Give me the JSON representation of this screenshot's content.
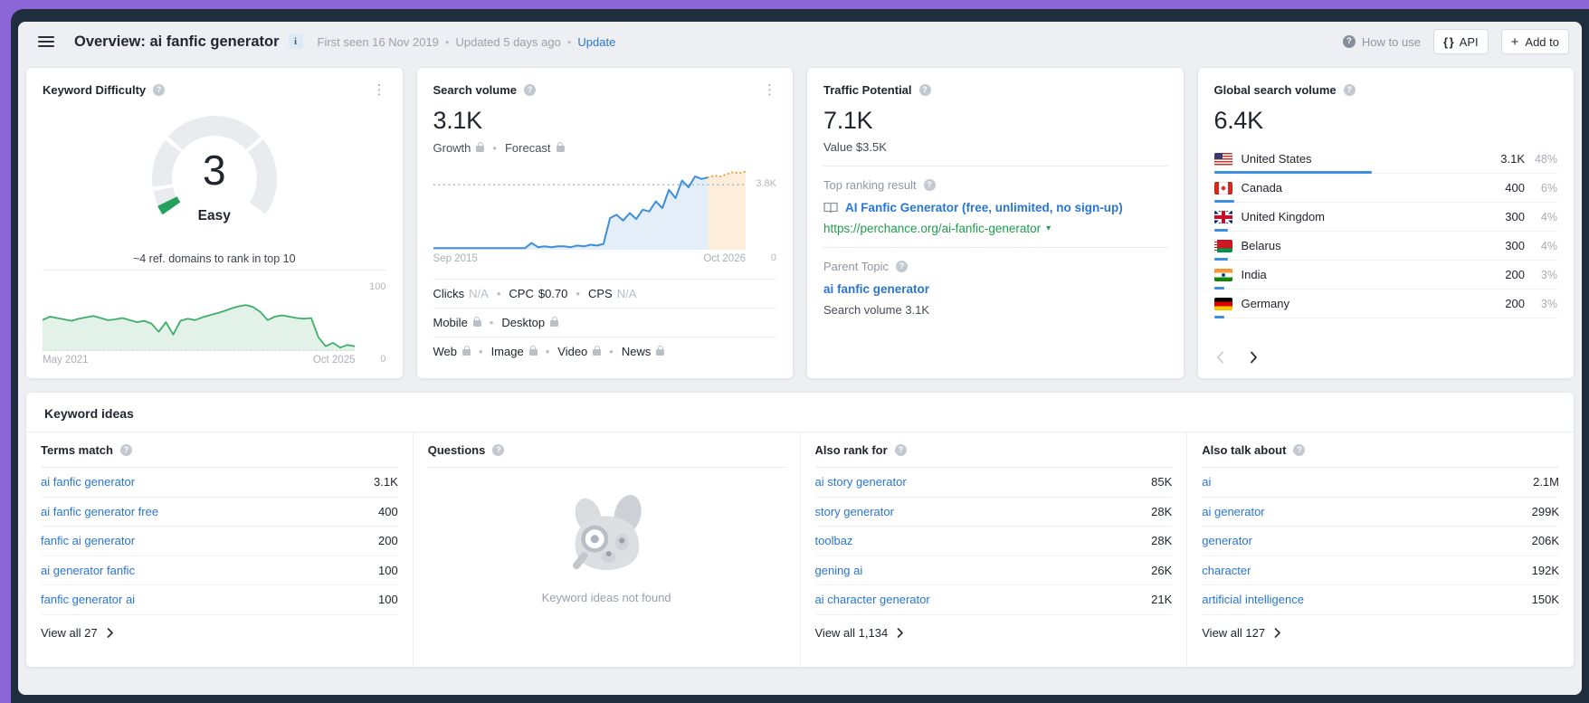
{
  "glyphs": {
    "dot": "•",
    "help": "?",
    "kebab": "⋮",
    "caret_down": "▾",
    "plus": "+",
    "braces": "{ }",
    "info": "i"
  },
  "header": {
    "title": "Overview: ai fanfic generator",
    "first_seen": "First seen 16 Nov 2019",
    "updated": "Updated 5 days ago",
    "update_link": "Update",
    "how_to_use": "How to use",
    "api_button": "API",
    "add_to_button": "Add to"
  },
  "kd_card": {
    "title": "Keyword Difficulty",
    "value": "3",
    "level": "Easy",
    "caption": "~4 ref. domains to rank in top 10",
    "gauge": {
      "value": 3,
      "max": 100,
      "boundaries": [
        10,
        30,
        70
      ]
    },
    "trend": {
      "y_max": "100",
      "y_min": "0",
      "x_start": "May 2021",
      "x_end": "Oct 2025",
      "points": [
        45,
        50,
        48,
        46,
        44,
        47,
        49,
        51,
        48,
        45,
        46,
        48,
        45,
        42,
        44,
        40,
        28,
        42,
        24,
        44,
        47,
        45,
        49,
        52,
        55,
        58,
        62,
        65,
        67,
        64,
        57,
        45,
        50,
        52,
        50,
        48,
        47,
        48,
        20,
        7,
        12,
        5,
        9,
        7
      ]
    }
  },
  "sv_card": {
    "title": "Search volume",
    "value": "3.1K",
    "growth_label": "Growth",
    "forecast_label": "Forecast",
    "chart": {
      "ref_label": "3.8K",
      "ref_value": 78,
      "x_start": "Sep 2015",
      "x_end": "Oct 2026",
      "y_min": "0",
      "history_points": [
        2,
        2,
        2,
        2,
        2,
        2,
        2,
        2,
        2,
        2,
        2,
        2,
        2,
        2,
        2,
        8,
        3,
        4,
        3,
        4,
        4,
        3,
        5,
        4,
        6,
        5,
        7,
        38,
        42,
        35,
        44,
        37,
        48,
        46,
        58,
        50,
        72,
        62,
        83,
        75,
        88,
        85,
        87
      ],
      "forecast_points": [
        87,
        89,
        88,
        91,
        93,
        92,
        94
      ],
      "history_x_end": 88
    },
    "metrics": {
      "clicks_label": "Clicks",
      "clicks_value": "N/A",
      "cpc_label": "CPC",
      "cpc_value": "$0.70",
      "cps_label": "CPS",
      "cps_value": "N/A",
      "mobile_label": "Mobile",
      "desktop_label": "Desktop",
      "web_label": "Web",
      "image_label": "Image",
      "video_label": "Video",
      "news_label": "News"
    }
  },
  "tp_card": {
    "title": "Traffic Potential",
    "value": "7.1K",
    "value_sub": "Value $3.5K",
    "top_ranking_label": "Top ranking result",
    "top_result_title": "AI Fanfic Generator (free, unlimited, no sign-up)",
    "top_result_url": "https://perchance.org/ai-fanfic-generator",
    "parent_topic_label": "Parent Topic",
    "parent_topic": "ai fanfic generator",
    "parent_topic_volume": "Search volume 3.1K"
  },
  "gsv_card": {
    "title": "Global search volume",
    "value": "6.4K",
    "countries": [
      {
        "code": "us",
        "name": "United States",
        "volume": "3.1K",
        "share": "48%",
        "bar": 46
      },
      {
        "code": "ca",
        "name": "Canada",
        "volume": "400",
        "share": "6%",
        "bar": 6
      },
      {
        "code": "gb",
        "name": "United Kingdom",
        "volume": "300",
        "share": "4%",
        "bar": 4
      },
      {
        "code": "by",
        "name": "Belarus",
        "volume": "300",
        "share": "4%",
        "bar": 4
      },
      {
        "code": "in",
        "name": "India",
        "volume": "200",
        "share": "3%",
        "bar": 3
      },
      {
        "code": "de",
        "name": "Germany",
        "volume": "200",
        "share": "3%",
        "bar": 3
      }
    ]
  },
  "keyword_ideas": {
    "title": "Keyword ideas",
    "terms_match": {
      "header": "Terms match",
      "rows": [
        {
          "keyword": "ai fanfic generator",
          "volume": "3.1K"
        },
        {
          "keyword": "ai fanfic generator free",
          "volume": "400"
        },
        {
          "keyword": "fanfic ai generator",
          "volume": "200"
        },
        {
          "keyword": "ai generator fanfic",
          "volume": "100"
        },
        {
          "keyword": "fanfic generator ai",
          "volume": "100"
        }
      ],
      "view_all": "View all 27"
    },
    "questions": {
      "header": "Questions",
      "empty_text": "Keyword ideas not found"
    },
    "also_rank_for": {
      "header": "Also rank for",
      "rows": [
        {
          "keyword": "ai story generator",
          "volume": "85K"
        },
        {
          "keyword": "story generator",
          "volume": "28K"
        },
        {
          "keyword": "toolbaz",
          "volume": "28K"
        },
        {
          "keyword": "gening ai",
          "volume": "26K"
        },
        {
          "keyword": "ai character generator",
          "volume": "21K"
        }
      ],
      "view_all": "View all 1,134"
    },
    "also_talk_about": {
      "header": "Also talk about",
      "rows": [
        {
          "keyword": "ai",
          "volume": "2.1M"
        },
        {
          "keyword": "ai generator",
          "volume": "299K"
        },
        {
          "keyword": "generator",
          "volume": "206K"
        },
        {
          "keyword": "character",
          "volume": "192K"
        },
        {
          "keyword": "artificial intelligence",
          "volume": "150K"
        }
      ],
      "view_all": "View all 127"
    }
  }
}
